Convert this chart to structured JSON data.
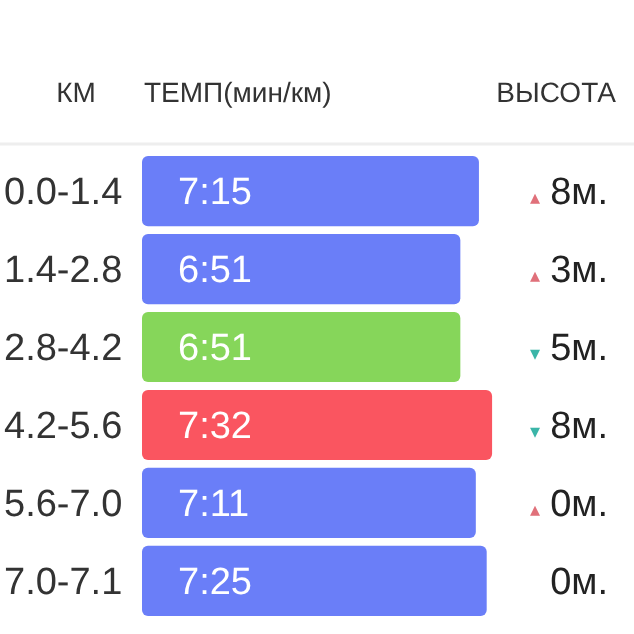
{
  "chart_data": {
    "type": "bar",
    "orientation": "horizontal",
    "ylabel": "КМ",
    "xlabel": "ТЕМП(мин/км)",
    "xlim": [
      0,
      7.6
    ],
    "tick_labels": false,
    "categories": [
      "0.0-1.4",
      "1.4-2.8",
      "2.8-4.2",
      "4.2-5.6",
      "5.6-7.0",
      "7.0-7.1"
    ],
    "values": [
      7.25,
      6.85,
      6.85,
      7.533,
      7.183,
      7.417
    ],
    "colors": [
      "#6a7ef8",
      "#6a7ef8",
      "#86d65a",
      "#fa5560",
      "#6a7ef8",
      "#6a7ef8"
    ],
    "value_labels": [
      "7:15",
      "6:51",
      "6:51",
      "7:32",
      "7:11",
      "7:25"
    ],
    "annotations": [
      "ВЫСОТА",
      "▴8м.",
      "▴3м.",
      "▾5м.",
      "▾8м.",
      "▴0м.",
      "0м."
    ]
  }
}
